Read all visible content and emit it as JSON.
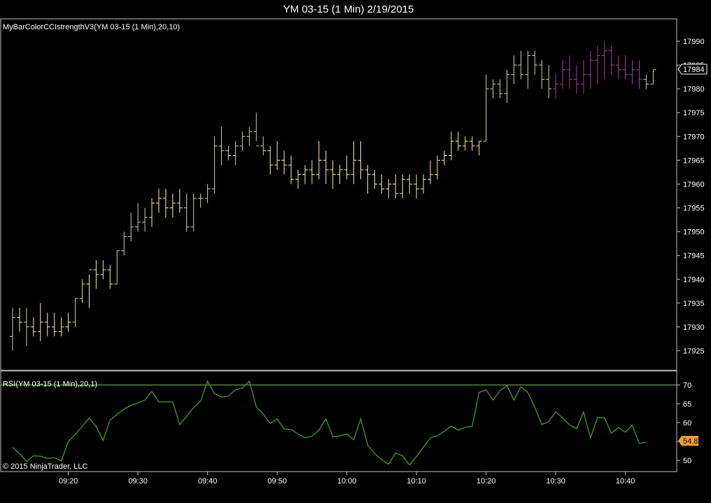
{
  "window": {
    "title": "YM 03-15 (1 Min)  2/19/2015"
  },
  "copyright": "© 2015 NinjaTrader, LLC",
  "colors": {
    "background": "#000000",
    "frame": "#c0c0c0",
    "bar_up": "#c8d6a0",
    "bar_down": "#ffeeaa",
    "bar_strong": "#b03a9e",
    "rsi_line": "#3e8f28",
    "rsi_level": "#7fbf5a",
    "rsi_tag": "#f0a030"
  },
  "chart_data": [
    {
      "type": "ohlc",
      "label": "MyBarColorCCIstrengthV3(YM 03-15 (1 Min),20,10)",
      "ylim": [
        17921,
        17992
      ],
      "y_ticks": [
        "17925",
        "17930",
        "17935",
        "17940",
        "17945",
        "17950",
        "17955",
        "17960",
        "17965",
        "17970",
        "17975",
        "17980",
        "17985",
        "17990"
      ],
      "last_price": "17984",
      "x_ticks": [
        "09:20",
        "09:30",
        "09:40",
        "09:50",
        "10:00",
        "10:10",
        "10:20",
        "10:30",
        "10:40"
      ],
      "x_tick_index": [
        8,
        18,
        28,
        38,
        48,
        58,
        68,
        78,
        88
      ],
      "bars": [
        [
          17928,
          17934,
          17925,
          17932
        ],
        [
          17932,
          17934,
          17929,
          17931
        ],
        [
          17931,
          17934,
          17926,
          17930
        ],
        [
          17930,
          17932,
          17928,
          17929
        ],
        [
          17929,
          17935,
          17927,
          17931
        ],
        [
          17931,
          17933,
          17928,
          17930
        ],
        [
          17930,
          17933,
          17928,
          17929
        ],
        [
          17929,
          17932,
          17928,
          17930
        ],
        [
          17930,
          17933,
          17929,
          17931
        ],
        [
          17931,
          17936,
          17930,
          17936
        ],
        [
          17936,
          17940,
          17935,
          17939
        ],
        [
          17939,
          17941,
          17934,
          17942
        ],
        [
          17942,
          17944,
          17938,
          17941
        ],
        [
          17941,
          17944,
          17940,
          17942
        ],
        [
          17942,
          17943,
          17938,
          17939
        ],
        [
          17939,
          17946,
          17939,
          17946
        ],
        [
          17946,
          17950,
          17945,
          17949
        ],
        [
          17949,
          17954,
          17948,
          17951
        ],
        [
          17951,
          17956,
          17950,
          17952
        ],
        [
          17952,
          17955,
          17950,
          17953
        ],
        [
          17953,
          17957,
          17951,
          17956
        ],
        [
          17956,
          17959,
          17954,
          17957
        ],
        [
          17957,
          17959,
          17953,
          17955
        ],
        [
          17955,
          17958,
          17953,
          17956
        ],
        [
          17956,
          17959,
          17954,
          17955
        ],
        [
          17955,
          17958,
          17950,
          17951
        ],
        [
          17951,
          17958,
          17950,
          17957
        ],
        [
          17957,
          17958,
          17955,
          17957
        ],
        [
          17957,
          17960,
          17956,
          17959
        ],
        [
          17959,
          17970,
          17958,
          17968
        ],
        [
          17968,
          17972,
          17964,
          17967
        ],
        [
          17967,
          17968,
          17965,
          17966
        ],
        [
          17966,
          17969,
          17964,
          17968
        ],
        [
          17968,
          17971,
          17967,
          17970
        ],
        [
          17970,
          17972,
          17968,
          17971
        ],
        [
          17971,
          17975,
          17969,
          17968
        ],
        [
          17968,
          17970,
          17966,
          17967
        ],
        [
          17967,
          17968,
          17962,
          17964
        ],
        [
          17964,
          17969,
          17963,
          17965
        ],
        [
          17965,
          17967,
          17962,
          17964
        ],
        [
          17964,
          17966,
          17960,
          17961
        ],
        [
          17961,
          17963,
          17959,
          17962
        ],
        [
          17962,
          17964,
          17960,
          17963
        ],
        [
          17963,
          17965,
          17960,
          17962
        ],
        [
          17962,
          17969,
          17961,
          17965
        ],
        [
          17965,
          17967,
          17960,
          17963
        ],
        [
          17963,
          17965,
          17959,
          17962
        ],
        [
          17962,
          17964,
          17960,
          17963
        ],
        [
          17963,
          17966,
          17961,
          17962
        ],
        [
          17962,
          17969,
          17960,
          17965
        ],
        [
          17965,
          17969,
          17961,
          17963
        ],
        [
          17963,
          17964,
          17958,
          17962
        ],
        [
          17962,
          17963,
          17959,
          17960
        ],
        [
          17960,
          17962,
          17958,
          17959
        ],
        [
          17959,
          17961,
          17957,
          17960
        ],
        [
          17960,
          17962,
          17957,
          17958
        ],
        [
          17958,
          17962,
          17957,
          17961
        ],
        [
          17961,
          17962,
          17958,
          17960
        ],
        [
          17960,
          17962,
          17957,
          17959
        ],
        [
          17959,
          17962,
          17958,
          17961
        ],
        [
          17961,
          17965,
          17960,
          17962
        ],
        [
          17962,
          17966,
          17961,
          17965
        ],
        [
          17965,
          17967,
          17964,
          17966
        ],
        [
          17966,
          17971,
          17965,
          17969
        ],
        [
          17969,
          17971,
          17967,
          17968
        ],
        [
          17968,
          17970,
          17967,
          17969
        ],
        [
          17969,
          17970,
          17967,
          17968
        ],
        [
          17968,
          17969,
          17966,
          17969
        ],
        [
          17969,
          17983,
          17969,
          17980
        ],
        [
          17980,
          17982,
          17978,
          17981
        ],
        [
          17981,
          17982,
          17978,
          17979
        ],
        [
          17979,
          17984,
          17977,
          17983
        ],
        [
          17983,
          17987,
          17981,
          17985
        ],
        [
          17985,
          17988,
          17982,
          17983
        ],
        [
          17983,
          17988,
          17980,
          17987
        ],
        [
          17987,
          17988,
          17983,
          17985
        ],
        [
          17985,
          17986,
          17980,
          17982
        ],
        [
          17982,
          17985,
          17978,
          17980
        ],
        [
          17980,
          17983,
          17978,
          17981
        ],
        [
          17981,
          17986,
          17980,
          17984
        ],
        [
          17984,
          17987,
          17980,
          17982
        ],
        [
          17982,
          17985,
          17979,
          17981
        ],
        [
          17981,
          17986,
          17979,
          17983
        ],
        [
          17983,
          17988,
          17980,
          17986
        ],
        [
          17986,
          17989,
          17981,
          17987
        ],
        [
          17987,
          17990,
          17982,
          17988
        ],
        [
          17988,
          17989,
          17983,
          17985
        ],
        [
          17985,
          17987,
          17982,
          17984
        ],
        [
          17984,
          17987,
          17982,
          17983
        ],
        [
          17983,
          17986,
          17981,
          17984
        ],
        [
          17984,
          17986,
          17980,
          17982
        ],
        [
          17982,
          17983,
          17980,
          17981
        ],
        [
          17981,
          17984,
          17981,
          17984
        ]
      ],
      "colors": [
        "up",
        "down",
        "up",
        "down",
        "down",
        "down",
        "down",
        "down",
        "down",
        "up",
        "up",
        "down",
        "down",
        "down",
        "down",
        "up",
        "up",
        "up",
        "up",
        "up",
        "down",
        "down",
        "down",
        "down",
        "down",
        "up",
        "up",
        "up",
        "up",
        "up",
        "up",
        "up",
        "up",
        "up",
        "up",
        "up",
        "up",
        "down",
        "down",
        "down",
        "down",
        "down",
        "down",
        "down",
        "down",
        "down",
        "down",
        "down",
        "down",
        "down",
        "down",
        "down",
        "down",
        "down",
        "down",
        "down",
        "down",
        "down",
        "down",
        "down",
        "down",
        "down",
        "down",
        "down",
        "down",
        "down",
        "down",
        "down",
        "up",
        "up",
        "up",
        "up",
        "up",
        "up",
        "up",
        "up",
        "up",
        "up",
        "strong",
        "strong",
        "strong",
        "strong",
        "strong",
        "strong",
        "strong",
        "strong",
        "strong",
        "strong",
        "strong",
        "strong",
        "strong",
        "up",
        "up"
      ]
    },
    {
      "type": "line",
      "label": "RSI(YM 03-15 (1 Min),20,1)",
      "ylim": [
        46,
        73
      ],
      "y_ticks": [
        "50",
        "55",
        "60",
        "65",
        "70"
      ],
      "level": 70,
      "last_value": "54.8",
      "values": [
        53.5,
        51.8,
        49.7,
        51.2,
        51.1,
        50.5,
        50.7,
        49.9,
        55.0,
        56.8,
        59.0,
        61.2,
        59.0,
        55.3,
        60.7,
        62.2,
        63.6,
        64.6,
        65.2,
        66.0,
        68.3,
        65.5,
        65.5,
        65.5,
        59.5,
        61.7,
        64.0,
        65.7,
        71.0,
        67.7,
        66.8,
        67.0,
        68.7,
        69.2,
        71.0,
        64.2,
        62.2,
        59.8,
        61.0,
        58.3,
        58.2,
        57.0,
        56.0,
        56.4,
        58.0,
        61.0,
        56.3,
        56.5,
        57.0,
        55.5,
        61.0,
        54.0,
        51.8,
        50.2,
        49.0,
        52.0,
        51.2,
        48.8,
        51.0,
        53.5,
        56.0,
        56.5,
        57.7,
        59.1,
        58.0,
        58.8,
        59.0,
        68.0,
        68.7,
        66.0,
        68.5,
        69.8,
        66.0,
        69.5,
        68.0,
        64.0,
        59.5,
        60.3,
        62.9,
        61.2,
        59.4,
        58.4,
        62.8,
        56.0,
        61.3,
        61.3,
        57.2,
        58.7,
        57.5,
        59.3,
        54.5,
        54.8
      ]
    }
  ]
}
